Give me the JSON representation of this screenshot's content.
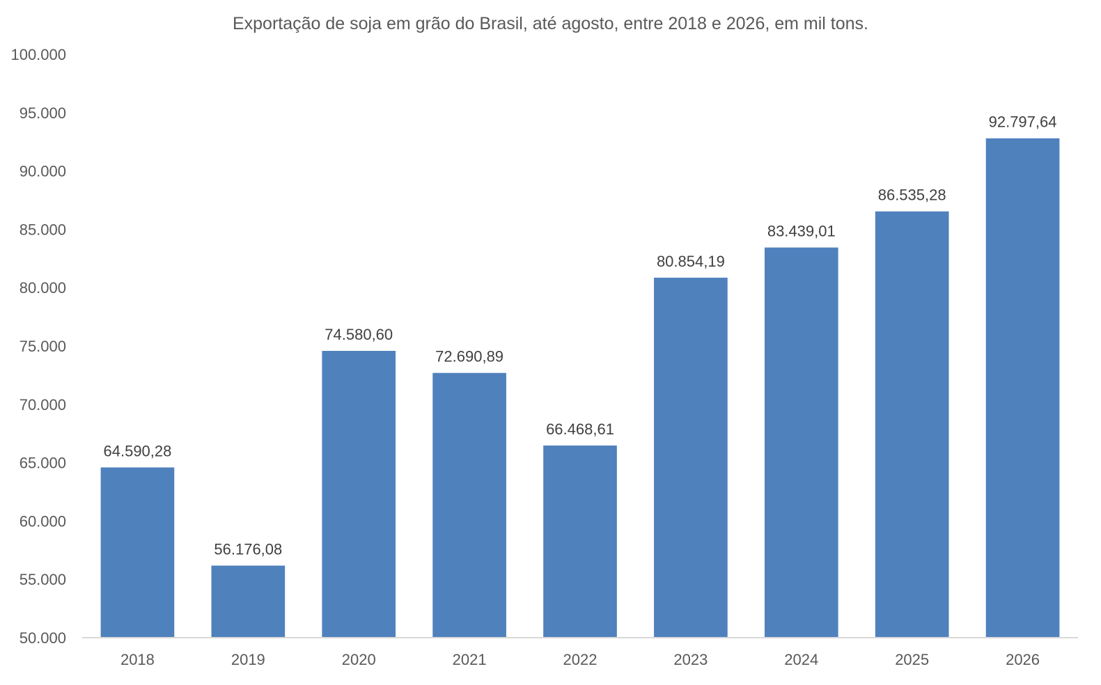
{
  "chart_data": {
    "type": "bar",
    "title": "Exportação de soja em grão do Brasil, até agosto, entre 2018 e 2026, em mil tons.",
    "categories": [
      "2018",
      "2019",
      "2020",
      "2021",
      "2022",
      "2023",
      "2024",
      "2025",
      "2026"
    ],
    "values": [
      64590.28,
      56176.08,
      74580.6,
      72690.89,
      66468.61,
      80854.19,
      83439.01,
      86535.28,
      92797.64
    ],
    "data_labels": [
      "64.590,28",
      "56.176,08",
      "74.580,60",
      "72.690,89",
      "66.468,61",
      "80.854,19",
      "83.439,01",
      "86.535,28",
      "92.797,64"
    ],
    "ylim": [
      50000,
      100000
    ],
    "yticks": [
      50000,
      55000,
      60000,
      65000,
      70000,
      75000,
      80000,
      85000,
      90000,
      95000,
      100000
    ],
    "ytick_labels": [
      "50.000",
      "55.000",
      "60.000",
      "65.000",
      "70.000",
      "75.000",
      "80.000",
      "85.000",
      "90.000",
      "95.000",
      "100.000"
    ],
    "xlabel": "",
    "ylabel": "",
    "grid": false,
    "legend": "none",
    "bar_color": "#4F81BD",
    "axis_color": "#D9D9D9"
  }
}
